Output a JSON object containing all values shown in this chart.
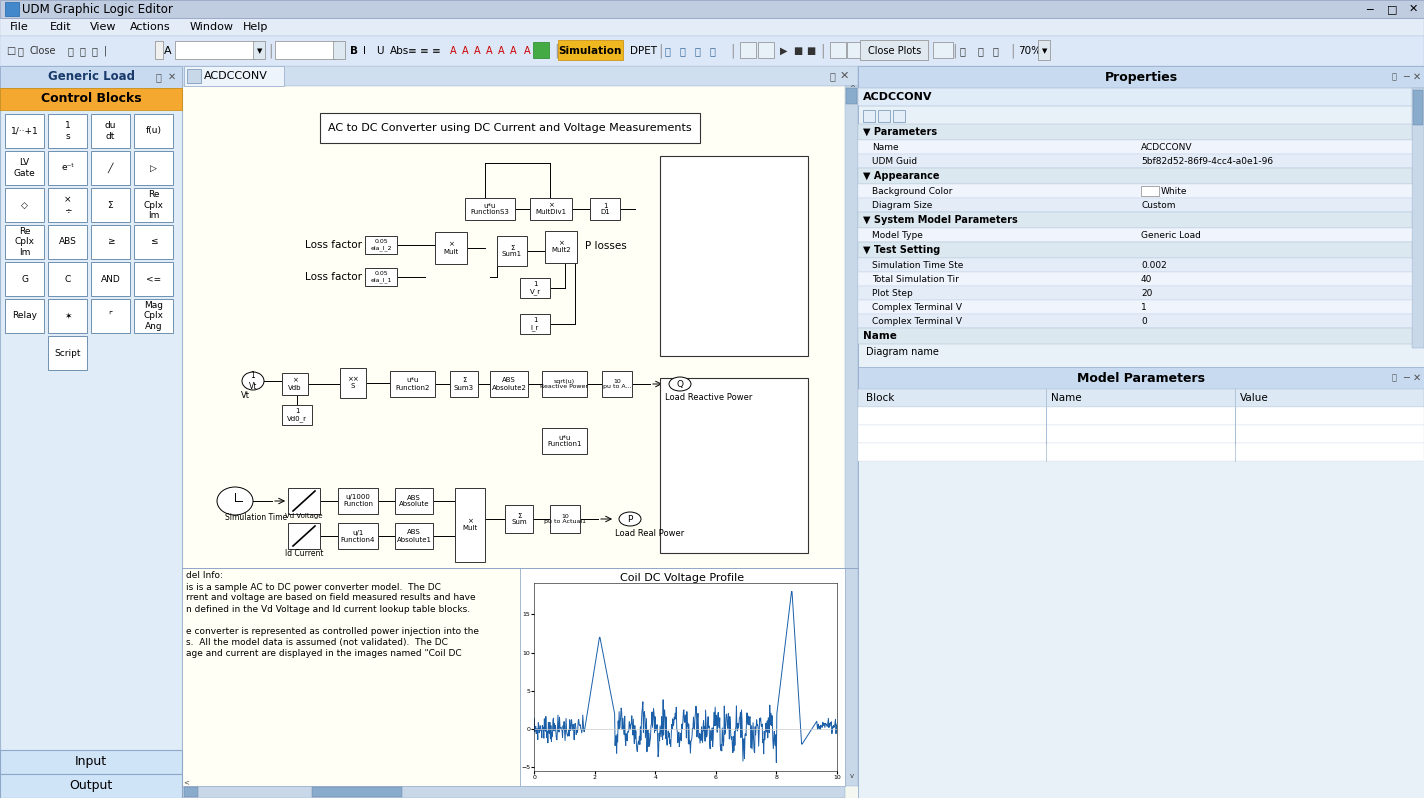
{
  "title": "UDM Graphic Logic Editor",
  "menubar_items": [
    "File",
    "Edit",
    "View",
    "Actions",
    "Window",
    "Help"
  ],
  "left_panel_title": "Generic Load",
  "left_panel_header": "Control Blocks",
  "diagram_title": "AC to DC Converter using DC Current and Voltage Measurements",
  "diagram_tab": "ACDCCONV",
  "properties_title": "Properties",
  "prop_name": "ACDCCONV",
  "prop_guid": "5bf82d52-86f9-4cc4-a0e1-96",
  "prop_bg_color": "White",
  "prop_diagram_size": "Custom",
  "prop_model_type": "Generic Load",
  "prop_sim_time": "0.002",
  "prop_total_sim": "40",
  "prop_plot_step": "20",
  "prop_complex_v1": "1",
  "prop_complex_v2": "0",
  "model_params_title": "Model Parameters",
  "model_params_cols": [
    "Block",
    "Name",
    "Value"
  ],
  "bottom_tabs": [
    "Input",
    "Output"
  ],
  "plot_title": "Coil DC Voltage Profile",
  "info_line1": "del Info:",
  "info_line2": "is is a sample AC to DC power converter model.  The DC",
  "info_line3": "rrent and voltage are based on field measured results and have",
  "info_line4": "n defined in the Vd Voltage and Id current lookup table blocks.",
  "info_line5": "",
  "info_line6": "e converter is represented as controlled power injection into the",
  "info_line7": "s.  All the model data is assumed (not validated).  The DC",
  "info_line8": "age and current are displayed in the images named \"Coil DC",
  "titlebar_bg": "#2a4a8a",
  "menubar_bg": "#e8eef8",
  "toolbar_bg": "#dce8f8",
  "left_panel_bg": "#e0ecf8",
  "left_panel_title_bg": "#c8daf0",
  "control_blocks_bg": "#f5a830",
  "diagram_bg": "#fffef5",
  "diagram_tab_bg": "#dce8f8",
  "props_bg": "#e8f0f8",
  "props_header_bg": "#c8daf0",
  "props_section_bg": "#dce8f0",
  "props_row_bg": "#f0f4fc",
  "props_row_alt": "#e4ecf8",
  "model_params_bg": "#c8daf0",
  "model_params_row": "#ffffff",
  "scrollbar_bg": "#c8d8e8",
  "scrollbar_thumb": "#8aaccc",
  "input_tab_bg": "#d0e4f8",
  "output_tab_bg": "#d0e4f8"
}
